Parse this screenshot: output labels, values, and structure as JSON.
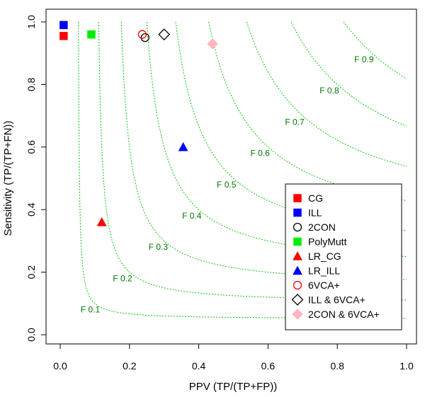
{
  "chart_data": {
    "type": "scatter",
    "title": "",
    "xlabel": "PPV (TP/(TP+FP))",
    "ylabel": "Sensitivity (TP/(TP+FN))",
    "xlim": [
      0.0,
      1.0
    ],
    "ylim": [
      0.0,
      1.0
    ],
    "xticks": [
      "0.0",
      "0.2",
      "0.4",
      "0.6",
      "0.8",
      "1.0"
    ],
    "yticks": [
      "0.0",
      "0.2",
      "0.4",
      "0.6",
      "0.8",
      "1.0"
    ],
    "grid": false,
    "legend_position": "bottom-right",
    "iso_f_lines": {
      "color": "#00cc00",
      "label_color": "#007700",
      "levels": [
        {
          "f": 0.1,
          "label": "F 0.1"
        },
        {
          "f": 0.2,
          "label": "F 0.2"
        },
        {
          "f": 0.3,
          "label": "F 0.3"
        },
        {
          "f": 0.4,
          "label": "F 0.4"
        },
        {
          "f": 0.5,
          "label": "F 0.5"
        },
        {
          "f": 0.6,
          "label": "F 0.6"
        },
        {
          "f": 0.7,
          "label": "F 0.7"
        },
        {
          "f": 0.8,
          "label": "F 0.8"
        },
        {
          "f": 0.9,
          "label": "F 0.9"
        }
      ]
    },
    "series": [
      {
        "name": "CG",
        "marker": "square",
        "filled": true,
        "color": "#ff0000",
        "x": 0.01,
        "y": 0.955
      },
      {
        "name": "ILL",
        "marker": "square",
        "filled": true,
        "color": "#0000ff",
        "x": 0.01,
        "y": 0.99
      },
      {
        "name": "2CON",
        "marker": "circle",
        "filled": false,
        "color": "#000000",
        "x": 0.245,
        "y": 0.95
      },
      {
        "name": "PolyMutt",
        "marker": "square",
        "filled": true,
        "color": "#00ee00",
        "x": 0.09,
        "y": 0.96
      },
      {
        "name": "LR_CG",
        "marker": "triangle",
        "filled": true,
        "color": "#ff0000",
        "x": 0.12,
        "y": 0.36
      },
      {
        "name": "LR_ILL",
        "marker": "triangle",
        "filled": true,
        "color": "#0000ff",
        "x": 0.355,
        "y": 0.6
      },
      {
        "name": "6VCA+",
        "marker": "circle",
        "filled": false,
        "color": "#ff0000",
        "x": 0.237,
        "y": 0.96
      },
      {
        "name": "ILL & 6VCA+",
        "marker": "diamond",
        "filled": false,
        "color": "#000000",
        "x": 0.3,
        "y": 0.96
      },
      {
        "name": "2CON & 6VCA+",
        "marker": "diamond",
        "filled": true,
        "color": "#ffb6c1",
        "x": 0.44,
        "y": 0.93
      }
    ]
  }
}
